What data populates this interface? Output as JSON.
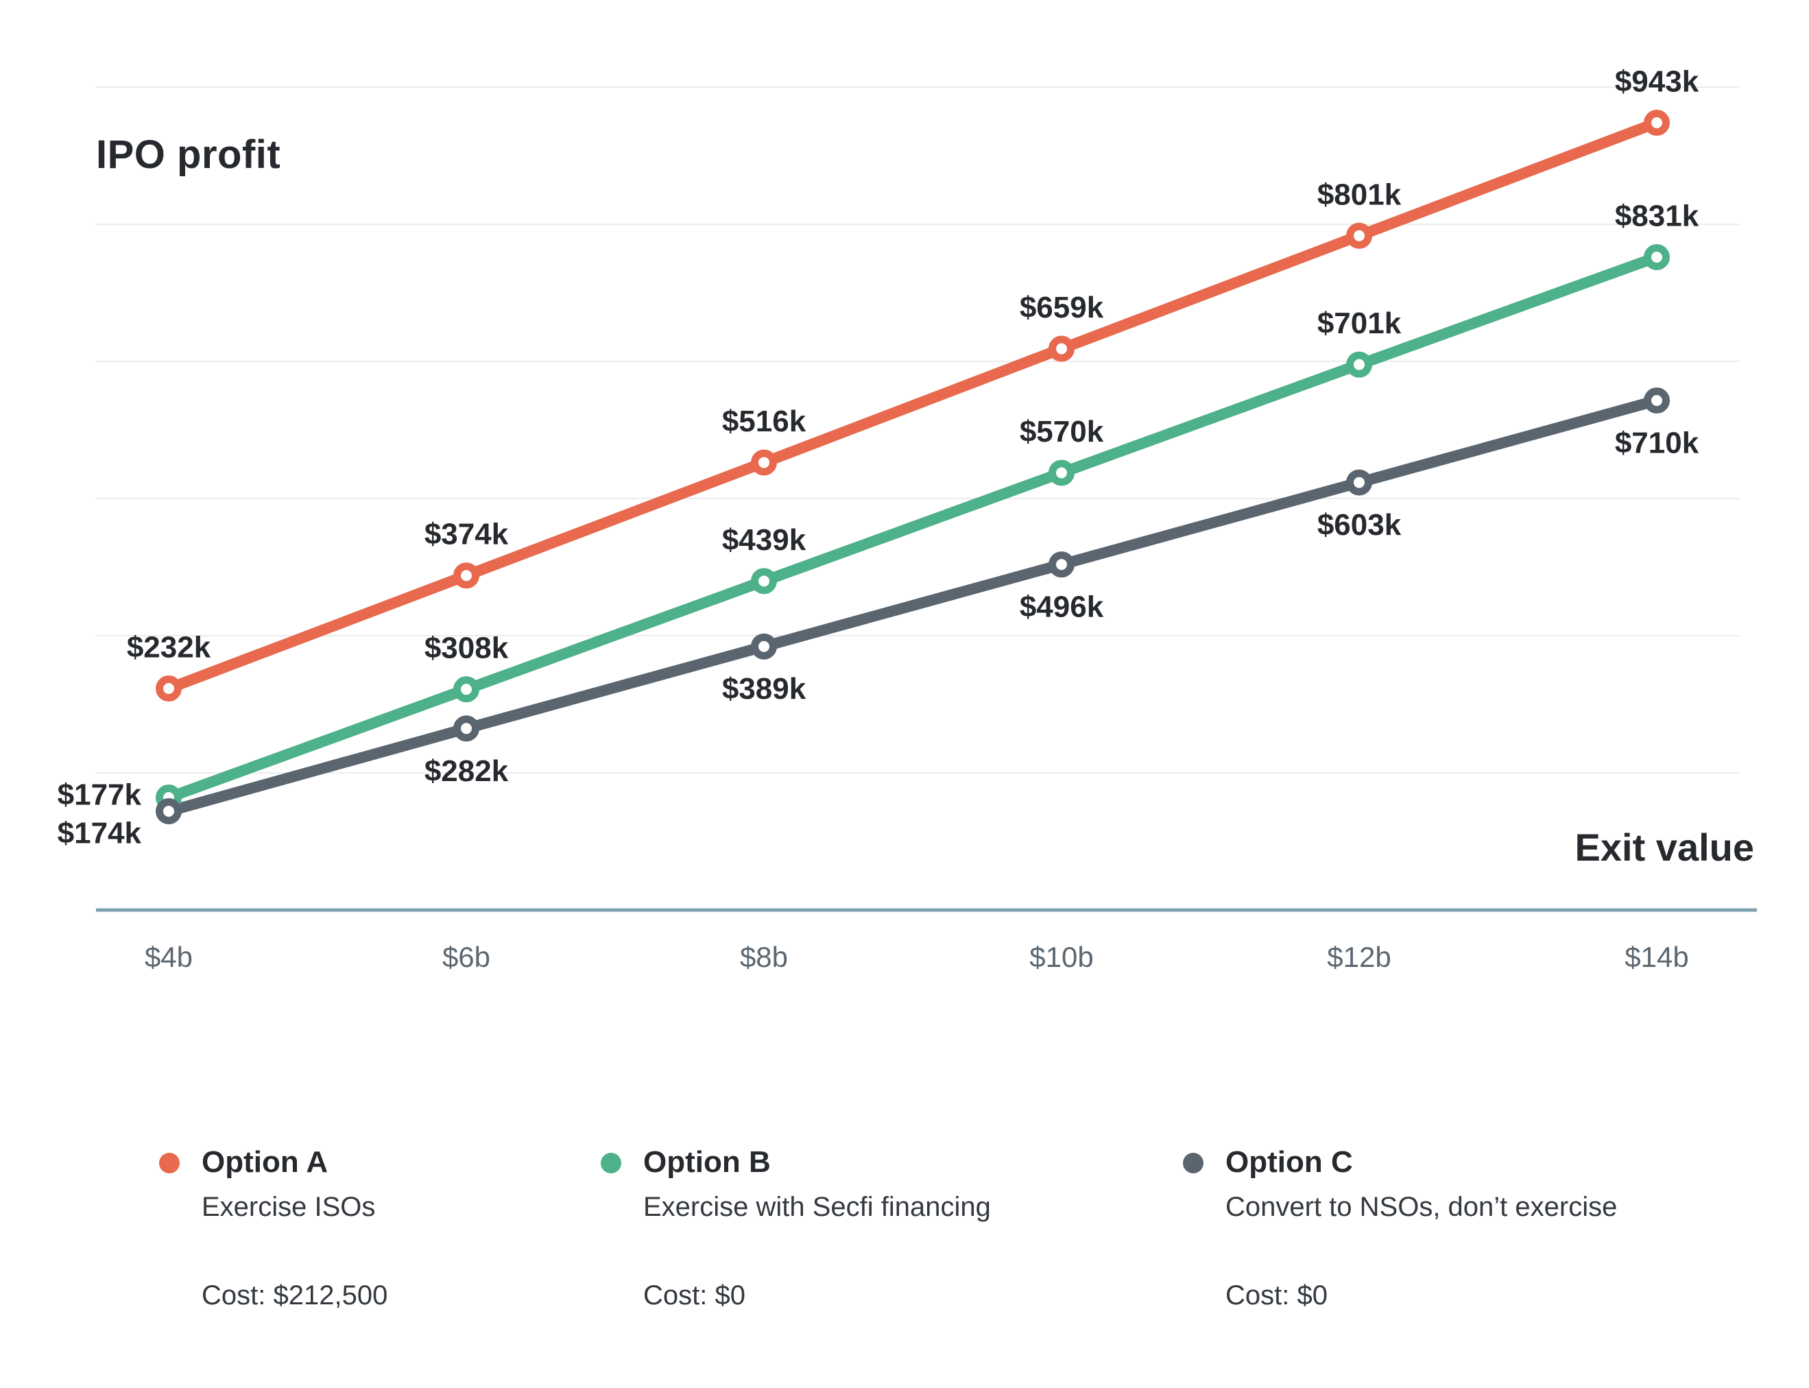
{
  "title": "IPO profit",
  "x_axis_label": "Exit value",
  "colors": {
    "option_a": "#E8694D",
    "option_b": "#4DB18A",
    "option_c": "#5A6570",
    "axis_line": "#7D9FB0",
    "gridline": "#ECECEC",
    "label_text": "#26292D",
    "tick_text": "#5C6771"
  },
  "chart_data": {
    "type": "line",
    "title": "IPO profit",
    "xlabel": "Exit value",
    "ylabel": "",
    "categories": [
      "$4b",
      "$6b",
      "$8b",
      "$10b",
      "$12b",
      "$14b"
    ],
    "x_values_billions": [
      4,
      6,
      8,
      10,
      12,
      14
    ],
    "grid": "horizontal-light",
    "legend_position": "bottom",
    "series": [
      {
        "name": "Option A",
        "color": "#E8694D",
        "values_k": [
          232,
          374,
          516,
          659,
          801,
          943
        ],
        "point_labels": [
          "$232k",
          "$374k",
          "$516k",
          "$659k",
          "$801k",
          "$943k"
        ]
      },
      {
        "name": "Option B",
        "color": "#4DB18A",
        "values_k": [
          177,
          308,
          439,
          570,
          701,
          831
        ],
        "point_labels": [
          "$177k",
          "$308k",
          "$439k",
          "$570k",
          "$701k",
          "$831k"
        ]
      },
      {
        "name": "Option C",
        "color": "#5A6570",
        "values_k": [
          174,
          282,
          389,
          496,
          603,
          710
        ],
        "point_labels": [
          "$174k",
          "$282k",
          "$389k",
          "$496k",
          "$603k",
          "$710k"
        ]
      }
    ]
  },
  "legend": {
    "items": [
      {
        "name": "Option A",
        "description": "Exercise ISOs",
        "cost": "Cost: $212,500",
        "color": "#E8694D"
      },
      {
        "name": "Option B",
        "description": "Exercise with Secfi financing",
        "cost": "Cost: $0",
        "color": "#4DB18A"
      },
      {
        "name": "Option C",
        "description": "Convert to NSOs, don’t exercise",
        "cost": "Cost: $0",
        "color": "#5A6570"
      }
    ]
  }
}
